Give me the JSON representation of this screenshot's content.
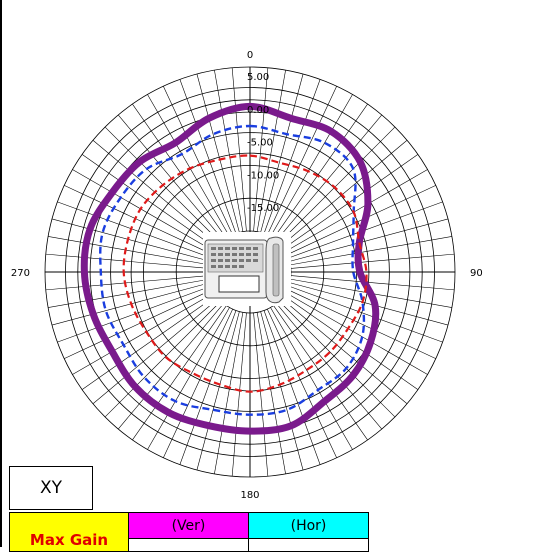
{
  "chart_data": {
    "type": "polar-line",
    "plane": "XY",
    "angle_labels": [
      "0",
      "90",
      "180",
      "270"
    ],
    "ring_labels": [
      "5.00",
      "0.00",
      "-5.00",
      "-10.00",
      "-15.00"
    ],
    "r_range": [
      -20,
      5
    ],
    "grid": true,
    "angles_deg": [
      0,
      15,
      30,
      45,
      60,
      75,
      90,
      105,
      120,
      135,
      150,
      165,
      180,
      195,
      210,
      225,
      240,
      255,
      270,
      285,
      300,
      315,
      330,
      345
    ],
    "series": [
      {
        "color": "#7a1a8c",
        "style": "solid",
        "values": [
          -1.0,
          -2.0,
          -1.5,
          -2.5,
          -5.5,
          -9.0,
          -9.5,
          -6.5,
          -5.0,
          -4.0,
          -3.5,
          -2.0,
          -2.0,
          -2.0,
          -1.5,
          -1.5,
          -2.0,
          -1.5,
          -1.0,
          -1.0,
          -2.0,
          -2.5,
          -3.5,
          -2.0
        ]
      },
      {
        "color": "#1a3ee0",
        "style": "dashed",
        "values": [
          -4.0,
          -4.5,
          -3.5,
          -4.0,
          -8.0,
          -10.0,
          -10.5,
          -8.5,
          -6.5,
          -5.5,
          -5.5,
          -4.5,
          -4.5,
          -4.5,
          -3.5,
          -3.5,
          -4.0,
          -3.5,
          -3.5,
          -3.0,
          -3.5,
          -4.0,
          -5.5,
          -4.5
        ]
      },
      {
        "color": "#e01a1a",
        "style": "dashed",
        "values": [
          -8.5,
          -9.0,
          -8.5,
          -8.0,
          -8.0,
          -9.0,
          -8.5,
          -8.5,
          -9.0,
          -9.0,
          -9.0,
          -8.5,
          -8.0,
          -8.5,
          -8.5,
          -8.0,
          -8.0,
          -7.5,
          -7.0,
          -7.0,
          -7.0,
          -7.5,
          -8.0,
          -8.5
        ]
      }
    ]
  },
  "plane_label": "XY",
  "table": {
    "max_gain_label": "Max Gain",
    "ver_label": "(Ver)",
    "hor_label": "(Hor)",
    "ver_value": "",
    "hor_value": ""
  },
  "center_image": {
    "icon": "desk-phone-icon"
  },
  "colors": {
    "ver_header": "#ff00ff",
    "hor_header": "#00ffff",
    "max_gain_bg": "#ffff00",
    "max_gain_text": "#e00000"
  }
}
